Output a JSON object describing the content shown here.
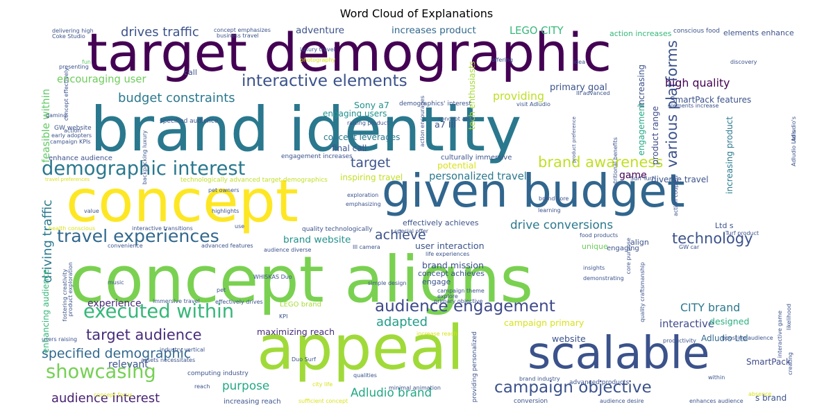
{
  "chart_data": {
    "type": "wordcloud",
    "title": "Word Cloud of Explanations",
    "colormap": [
      "#440154",
      "#3b528b",
      "#21918c",
      "#5ec962",
      "#fde725"
    ],
    "words": [
      {
        "text": "concept aligns",
        "weight": 100,
        "color": "#7ad151"
      },
      {
        "text": "brand identity",
        "weight": 92,
        "color": "#2a788e"
      },
      {
        "text": "target demographic",
        "weight": 88,
        "color": "#440154"
      },
      {
        "text": "concept",
        "weight": 86,
        "color": "#fde725"
      },
      {
        "text": "appeal",
        "weight": 84,
        "color": "#a0da39"
      },
      {
        "text": "given budget",
        "weight": 72,
        "color": "#31668e"
      },
      {
        "text": "scalable",
        "weight": 68,
        "color": "#3b528b"
      },
      {
        "text": "audience engagement",
        "weight": 24,
        "color": "#3e4a89"
      },
      {
        "text": "demographic interest",
        "weight": 24,
        "color": "#2a788e"
      },
      {
        "text": "executed within",
        "weight": 24,
        "color": "#35b779"
      },
      {
        "text": "travel experiences",
        "weight": 22,
        "color": "#31688e"
      },
      {
        "text": "showcasing",
        "weight": 24,
        "color": "#75d054"
      },
      {
        "text": "campaign objective",
        "weight": 22,
        "color": "#3b528b"
      },
      {
        "text": "interactive elements",
        "weight": 22,
        "color": "#3b528b"
      },
      {
        "text": "various platforms",
        "weight": 22,
        "color": "#3b528b"
      },
      {
        "text": "target audience",
        "weight": 20,
        "color": "#472c7a"
      },
      {
        "text": "specified demographic",
        "weight": 18,
        "color": "#31688e"
      },
      {
        "text": "brand awareness",
        "weight": 20,
        "color": "#c0df25"
      },
      {
        "text": "technology",
        "weight": 20,
        "color": "#3b528b"
      },
      {
        "text": "driving traffic",
        "weight": 18,
        "color": "#2a788e"
      },
      {
        "text": "audience interest",
        "weight": 17,
        "color": "#482173"
      },
      {
        "text": "budget constraints",
        "weight": 17,
        "color": "#2a788e"
      },
      {
        "text": "drives traffic",
        "weight": 17,
        "color": "#3b528b"
      },
      {
        "text": "target",
        "weight": 18,
        "color": "#3b528b"
      },
      {
        "text": "achieve",
        "weight": 18,
        "color": "#3b528b"
      },
      {
        "text": "drive conversions",
        "weight": 16,
        "color": "#2a788e"
      },
      {
        "text": "adapted",
        "weight": 17,
        "color": "#1f9e89"
      },
      {
        "text": "purpose",
        "weight": 16,
        "color": "#22a884"
      },
      {
        "text": "Adludio brand",
        "weight": 16,
        "color": "#22a884"
      },
      {
        "text": "high quality",
        "weight": 15,
        "color": "#440154"
      },
      {
        "text": "CITY brand",
        "weight": 15,
        "color": "#2a788e"
      },
      {
        "text": "providing",
        "weight": 15,
        "color": "#bddf26"
      },
      {
        "text": "encouraging user",
        "weight": 14,
        "color": "#6ccd5a"
      },
      {
        "text": "interactive",
        "weight": 14,
        "color": "#3e4a89"
      },
      {
        "text": "LEGO CITY",
        "weight": 14,
        "color": "#35b779"
      },
      {
        "text": "feasible within",
        "weight": 14,
        "color": "#5ec962"
      },
      {
        "text": "personalized travel",
        "weight": 14,
        "color": "#2a788e"
      },
      {
        "text": "brand website",
        "weight": 13,
        "color": "#21918c"
      },
      {
        "text": "adventure",
        "weight": 13,
        "color": "#3b528b"
      },
      {
        "text": "increases product",
        "weight": 13,
        "color": "#31688e"
      },
      {
        "text": "maximizing reach",
        "weight": 12,
        "color": "#472c7a"
      },
      {
        "text": "website",
        "weight": 12,
        "color": "#3b528b"
      },
      {
        "text": "campaign primary",
        "weight": 12,
        "color": "#d8e219"
      },
      {
        "text": "designed",
        "weight": 12,
        "color": "#29af7f"
      },
      {
        "text": "user interaction",
        "weight": 12,
        "color": "#3b528b"
      },
      {
        "text": "brand mission",
        "weight": 12,
        "color": "#3b528b"
      },
      {
        "text": "potential",
        "weight": 12,
        "color": "#d8e219"
      },
      {
        "text": "Sony a7",
        "weight": 12,
        "color": "#21918c"
      },
      {
        "text": "a7 III",
        "weight": 12,
        "color": "#3b528b"
      },
      {
        "text": "experience",
        "weight": 11,
        "color": "#482878"
      },
      {
        "text": "relevant",
        "weight": 11,
        "color": "#3b528b"
      },
      {
        "text": "enhancing audience",
        "weight": 9,
        "color": "#35b779"
      },
      {
        "text": "game",
        "weight": 11,
        "color": "#440154"
      },
      {
        "text": "primary goal",
        "weight": 10,
        "color": "#3b528b"
      },
      {
        "text": "SmartPack features",
        "weight": 9,
        "color": "#3b528b"
      },
      {
        "text": "engaging users",
        "weight": 9,
        "color": "#21918c"
      },
      {
        "text": "concept leverages",
        "weight": 9,
        "color": "#2a788e"
      },
      {
        "text": "final call",
        "weight": 9,
        "color": "#3b528b"
      },
      {
        "text": "Adludio Ltd",
        "weight": 9,
        "color": "#31688e"
      },
      {
        "text": "increasing product",
        "weight": 9,
        "color": "#2a788e"
      },
      {
        "text": "product range",
        "weight": 9,
        "color": "#3e4a89"
      },
      {
        "text": "engagement",
        "weight": 9,
        "color": "#22a884"
      },
      {
        "text": "increasing",
        "weight": 9,
        "color": "#3b528b"
      },
      {
        "text": "diverse travel",
        "weight": 9,
        "color": "#3b528b"
      },
      {
        "text": "inspiring travel",
        "weight": 9,
        "color": "#c2df23"
      },
      {
        "text": "tech enthusiasts",
        "weight": 9,
        "color": "#a5db36"
      },
      {
        "text": "culturally immersive",
        "weight": 7,
        "color": "#3b528b"
      },
      {
        "text": "SmartPack",
        "weight": 9,
        "color": "#3e4a89"
      },
      {
        "text": "s brand",
        "weight": 9,
        "color": "#3b528b"
      },
      {
        "text": "engage",
        "weight": 8,
        "color": "#3b528b"
      },
      {
        "text": "concept achieves",
        "weight": 8,
        "color": "#3b528b"
      },
      {
        "text": "action increases",
        "weight": 8,
        "color": "#35b779"
      },
      {
        "text": "elements enhance",
        "weight": 8,
        "color": "#3b528b"
      },
      {
        "text": "effectively achieves",
        "weight": 8,
        "color": "#3b528b"
      },
      {
        "text": "unique",
        "weight": 8,
        "color": "#6ccd5a"
      },
      {
        "text": "align",
        "weight": 8,
        "color": "#3b528b"
      },
      {
        "text": "Ltd s",
        "weight": 8,
        "color": "#3b528b"
      },
      {
        "text": "call",
        "weight": 8,
        "color": "#3b528b"
      },
      {
        "text": "LEGO brand",
        "weight": 7,
        "color": "#a5db36"
      },
      {
        "text": "engaging",
        "weight": 7,
        "color": "#3b528b"
      },
      {
        "text": "GW website",
        "weight": 6,
        "color": "#3b528b"
      },
      {
        "text": "specified audience",
        "weight": 6,
        "color": "#3b528b"
      },
      {
        "text": "enhance audience",
        "weight": 7,
        "color": "#3b528b"
      },
      {
        "text": "technologically advanced target demographics",
        "weight": 6,
        "color": "#c0df25"
      },
      {
        "text": "quality technologically",
        "weight": 6,
        "color": "#3b528b"
      },
      {
        "text": "engagement increases",
        "weight": 6,
        "color": "#3b528b"
      },
      {
        "text": "conscious food",
        "weight": 6,
        "color": "#3b528b"
      },
      {
        "text": "advanced products",
        "weight": 6,
        "color": "#3b528b"
      },
      {
        "text": "increasing reach",
        "weight": 7,
        "color": "#3b528b"
      },
      {
        "text": "conversion",
        "weight": 6,
        "color": "#3b528b"
      },
      {
        "text": "brand industry",
        "weight": 5,
        "color": "#3b528b"
      },
      {
        "text": "computing industry",
        "weight": 6,
        "color": "#3b528b"
      },
      {
        "text": "sufficient concept",
        "weight": 5,
        "color": "#d8e219"
      },
      {
        "text": "city life",
        "weight": 5,
        "color": "#d8e219"
      },
      {
        "text": "minimal animation",
        "weight": 5,
        "color": "#3b528b"
      },
      {
        "text": "enhances audience",
        "weight": 5,
        "color": "#3b528b"
      },
      {
        "text": "audience desire",
        "weight": 5,
        "color": "#3b528b"
      },
      {
        "text": "within",
        "weight": 5,
        "color": "#3b528b"
      },
      {
        "text": "delivering high",
        "weight": 5,
        "color": "#3b528b"
      },
      {
        "text": "concept emphasizes",
        "weight": 5,
        "color": "#3b528b"
      },
      {
        "text": "business travel",
        "weight": 5,
        "color": "#3b528b"
      },
      {
        "text": "Coke Studio",
        "weight": 5,
        "color": "#3b528b"
      },
      {
        "text": "luxury travel",
        "weight": 5,
        "color": "#3b528b"
      },
      {
        "text": "photography",
        "weight": 5,
        "color": "#d8e219"
      },
      {
        "text": "presenting",
        "weight": 5,
        "color": "#3b528b"
      },
      {
        "text": "fun",
        "weight": 5,
        "color": "#5ec962"
      },
      {
        "text": "gaming",
        "weight": 5,
        "color": "#3b528b"
      },
      {
        "text": "action",
        "weight": 5,
        "color": "#3b528b"
      },
      {
        "text": "early adopters",
        "weight": 5,
        "color": "#3b528b"
      },
      {
        "text": "campaign KPIs",
        "weight": 5,
        "color": "#3b528b"
      },
      {
        "text": "travel preferences",
        "weight": 4,
        "color": "#d8e219"
      },
      {
        "text": "idea",
        "weight": 5,
        "color": "#3b528b"
      },
      {
        "text": "discovery",
        "weight": 5,
        "color": "#3b528b"
      },
      {
        "text": "offering",
        "weight": 5,
        "color": "#3b528b"
      },
      {
        "text": "visit Adludio",
        "weight": 5,
        "color": "#3b528b"
      },
      {
        "text": "III advanced",
        "weight": 5,
        "color": "#3b528b"
      },
      {
        "text": "demographics' interest",
        "weight": 6,
        "color": "#3b528b"
      },
      {
        "text": "raising product",
        "weight": 5,
        "color": "#3b528b"
      },
      {
        "text": "elements increase",
        "weight": 5,
        "color": "#3b528b"
      },
      {
        "text": "product preference",
        "weight": 4,
        "color": "#3b528b"
      },
      {
        "text": "Surf Turf",
        "weight": 5,
        "color": "#3b528b"
      },
      {
        "text": "brand core",
        "weight": 5,
        "color": "#3b528b"
      },
      {
        "text": "learning",
        "weight": 5,
        "color": "#3b528b"
      },
      {
        "text": "pet owners",
        "weight": 5,
        "color": "#3b528b"
      },
      {
        "text": "highlights",
        "weight": 5,
        "color": "#3b528b"
      },
      {
        "text": "emphasizing",
        "weight": 5,
        "color": "#3b528b"
      },
      {
        "text": "exploration",
        "weight": 5,
        "color": "#3b528b"
      },
      {
        "text": "value",
        "weight": 5,
        "color": "#3b528b"
      },
      {
        "text": "health conscious",
        "weight": 5,
        "color": "#d8e219"
      },
      {
        "text": "interactive transitions",
        "weight": 5,
        "color": "#3b528b"
      },
      {
        "text": "use",
        "weight": 5,
        "color": "#3b528b"
      },
      {
        "text": "convenience",
        "weight": 5,
        "color": "#3b528b"
      },
      {
        "text": "advanced features",
        "weight": 5,
        "color": "#3b528b"
      },
      {
        "text": "audience diverse",
        "weight": 5,
        "color": "#3b528b"
      },
      {
        "text": "III camera",
        "weight": 5,
        "color": "#3b528b"
      },
      {
        "text": "special offer",
        "weight": 5,
        "color": "#3b528b"
      },
      {
        "text": "food products",
        "weight": 5,
        "color": "#3b528b"
      },
      {
        "text": "GW car",
        "weight": 5,
        "color": "#3b528b"
      },
      {
        "text": "life experiences",
        "weight": 5,
        "color": "#3b528b"
      },
      {
        "text": "Turf product",
        "weight": 5,
        "color": "#3b528b"
      },
      {
        "text": "insights",
        "weight": 5,
        "color": "#3b528b"
      },
      {
        "text": "demonstrating",
        "weight": 5,
        "color": "#3b528b"
      },
      {
        "text": "campaign theme",
        "weight": 5,
        "color": "#3b528b"
      },
      {
        "text": "explore",
        "weight": 5,
        "color": "#3b528b"
      },
      {
        "text": "primary objective",
        "weight": 5,
        "color": "#3b528b"
      },
      {
        "text": "simple design",
        "weight": 5,
        "color": "#3b528b"
      },
      {
        "text": "WHISKAS Duo",
        "weight": 5,
        "color": "#3b528b"
      },
      {
        "text": "pet",
        "weight": 5,
        "color": "#3b528b"
      },
      {
        "text": "music",
        "weight": 5,
        "color": "#3b528b"
      },
      {
        "text": "immersive travel",
        "weight": 5,
        "color": "#3b528b"
      },
      {
        "text": "effectively drives",
        "weight": 5,
        "color": "#3b528b"
      },
      {
        "text": "KPI",
        "weight": 5,
        "color": "#3b528b"
      },
      {
        "text": "increase reach",
        "weight": 5,
        "color": "#d8e219"
      },
      {
        "text": "productivity",
        "weight": 5,
        "color": "#3b528b"
      },
      {
        "text": "boosting audience",
        "weight": 5,
        "color": "#3b528b"
      },
      {
        "text": "users raising",
        "weight": 5,
        "color": "#3b528b"
      },
      {
        "text": "industry vertical",
        "weight": 5,
        "color": "#3b528b"
      },
      {
        "text": "assets necessitates",
        "weight": 5,
        "color": "#3b528b"
      },
      {
        "text": "Duo Surf",
        "weight": 5,
        "color": "#3b528b"
      },
      {
        "text": "reach",
        "weight": 5,
        "color": "#3b528b"
      },
      {
        "text": "concept focus",
        "weight": 5,
        "color": "#d8e219"
      },
      {
        "text": "qualities",
        "weight": 5,
        "color": "#3b528b"
      },
      {
        "text": "absence",
        "weight": 5,
        "color": "#d8e219"
      },
      {
        "text": "creating",
        "weight": 5,
        "color": "#3b528b"
      },
      {
        "text": "likelihood",
        "weight": 5,
        "color": "#3b528b"
      },
      {
        "text": "interactive game",
        "weight": 5,
        "color": "#3b528b"
      },
      {
        "text": "quality craftsmanship",
        "weight": 5,
        "color": "#3b528b"
      },
      {
        "text": "core purpose",
        "weight": 5,
        "color": "#3b528b"
      },
      {
        "text": "action coupled",
        "weight": 5,
        "color": "#3b528b"
      },
      {
        "text": "nutritional benefits",
        "weight": 5,
        "color": "#3b528b"
      },
      {
        "text": "providing personalized",
        "weight": 6,
        "color": "#3b528b"
      },
      {
        "text": "concept also",
        "weight": 5,
        "color": "#3b528b"
      },
      {
        "text": "action encourages",
        "weight": 5,
        "color": "#3b528b"
      },
      {
        "text": "fostering creativity",
        "weight": 5,
        "color": "#3b528b"
      },
      {
        "text": "product exploration",
        "weight": 5,
        "color": "#3b528b"
      },
      {
        "text": "backpacking luxury",
        "weight": 5,
        "color": "#3b528b"
      },
      {
        "text": "concept effectively",
        "weight": 5,
        "color": "#3b528b"
      },
      {
        "text": "Adludio Ltd s",
        "weight": 5,
        "color": "#3b528b"
      },
      {
        "text": "Adludio's",
        "weight": 5,
        "color": "#3b528b"
      }
    ]
  }
}
